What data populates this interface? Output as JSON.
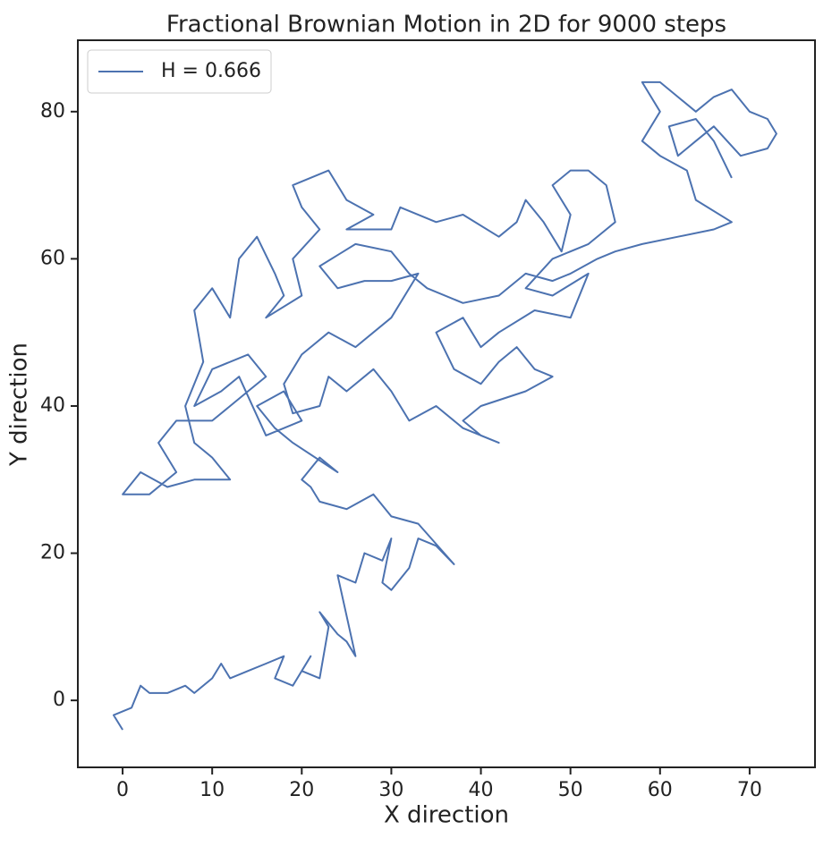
{
  "chart_data": {
    "type": "line",
    "title": "Fractional Brownian Motion in 2D for 9000 steps",
    "xlabel": "X direction",
    "ylabel": "Y direction",
    "xlim": [
      -5,
      77.3
    ],
    "ylim": [
      -9.1,
      89.7
    ],
    "xticks": [
      0,
      10,
      20,
      30,
      40,
      50,
      60,
      70
    ],
    "yticks": [
      0,
      20,
      40,
      60,
      80
    ],
    "grid": false,
    "legend": "upper left",
    "series": [
      {
        "name": "H = 0.666",
        "color": "#4c72b0",
        "x": [
          0,
          -1,
          1,
          2,
          3,
          5,
          7,
          8,
          10,
          11,
          12,
          14,
          16,
          18,
          17,
          19,
          21,
          20,
          22,
          23,
          22,
          24,
          25,
          26,
          24,
          26,
          27,
          29,
          30,
          29,
          30,
          32,
          33,
          35,
          37,
          33,
          30,
          28,
          25,
          22,
          21,
          20,
          22,
          24,
          19,
          17,
          15,
          18,
          20,
          16,
          13,
          11,
          8,
          10,
          14,
          16,
          14,
          12,
          10,
          6,
          4,
          6,
          3,
          0,
          2,
          5,
          8,
          12,
          10,
          8,
          7,
          9,
          8,
          10,
          12,
          13,
          15,
          17,
          18,
          16,
          20,
          19,
          22,
          20,
          19,
          23,
          25,
          28,
          25,
          30,
          31,
          35,
          38,
          42,
          44,
          45,
          47,
          49,
          50,
          48,
          50,
          52,
          54,
          55,
          52,
          48,
          45,
          48,
          52,
          50,
          46,
          42,
          40,
          38,
          35,
          37,
          40,
          42,
          44,
          46,
          48,
          45,
          40,
          38,
          40,
          42,
          38,
          35,
          32,
          30,
          28,
          25,
          23,
          22,
          19,
          18,
          20,
          23,
          26,
          30,
          33,
          30,
          27,
          24,
          22,
          26,
          30,
          32,
          34,
          38,
          42,
          45,
          48,
          50,
          53,
          55,
          58,
          62,
          66,
          68,
          64,
          63,
          60,
          58,
          60,
          58,
          60,
          62,
          64,
          66,
          68,
          70,
          72,
          73,
          72,
          69,
          66,
          64,
          62,
          61,
          64,
          66,
          68
        ],
        "values": [
          -4,
          -2,
          -1,
          2,
          1,
          1,
          2,
          1,
          3,
          5,
          3,
          4,
          5,
          6,
          3,
          2,
          6,
          4,
          3,
          10,
          12,
          9,
          8,
          6,
          17,
          16,
          20,
          19,
          22,
          16,
          15,
          18,
          22,
          21,
          18.5,
          24,
          25,
          28,
          26,
          27,
          29,
          30,
          33,
          31,
          35,
          37,
          40,
          42,
          38,
          36,
          44,
          42,
          40,
          45,
          47,
          44,
          42,
          40,
          38,
          38,
          35,
          31,
          28,
          28,
          31,
          29,
          30,
          30,
          33,
          35,
          40,
          46,
          53,
          56,
          52,
          60,
          63,
          58,
          55,
          52,
          55,
          60,
          64,
          67,
          70,
          72,
          68,
          66,
          64,
          64,
          67,
          65,
          66,
          63,
          65,
          68,
          65,
          61,
          66,
          70,
          72,
          72,
          70,
          65,
          62,
          60,
          56,
          55,
          58,
          52,
          53,
          50,
          48,
          52,
          50,
          45,
          43,
          46,
          48,
          45,
          44,
          42,
          40,
          38,
          36,
          35,
          37,
          40,
          38,
          42,
          45,
          42,
          44,
          40,
          39,
          43,
          47,
          50,
          48,
          52,
          58,
          57,
          57,
          56,
          59,
          62,
          61,
          58,
          56,
          54,
          55,
          58,
          57,
          58,
          60,
          61,
          62,
          63,
          64,
          65,
          68,
          72,
          74,
          76,
          80,
          84,
          84,
          82,
          80,
          82,
          83,
          80,
          79,
          77,
          75,
          74,
          78,
          76,
          74,
          78,
          79,
          76,
          71
        ]
      }
    ]
  }
}
